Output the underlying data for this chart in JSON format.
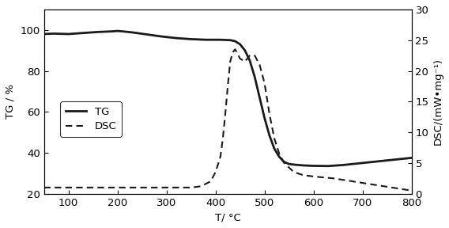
{
  "xlabel": "T/ °C",
  "ylabel_left": "TG / %",
  "ylabel_right": "DSC/(mW•mg⁻¹)",
  "xlim": [
    50,
    800
  ],
  "ylim_left": [
    20,
    110
  ],
  "ylim_right": [
    0,
    30
  ],
  "xticks": [
    100,
    200,
    300,
    400,
    500,
    600,
    700,
    800
  ],
  "yticks_left": [
    20,
    40,
    60,
    80,
    100
  ],
  "yticks_right": [
    0,
    5,
    10,
    15,
    20,
    25,
    30
  ],
  "tg_x": [
    50,
    70,
    100,
    130,
    160,
    190,
    200,
    210,
    230,
    260,
    290,
    320,
    350,
    380,
    410,
    430,
    440,
    450,
    460,
    470,
    480,
    490,
    500,
    510,
    520,
    530,
    540,
    550,
    560,
    570,
    580,
    600,
    630,
    660,
    700,
    740,
    800
  ],
  "tg_y": [
    98.0,
    98.2,
    98.0,
    98.5,
    99.0,
    99.3,
    99.5,
    99.3,
    98.8,
    97.8,
    96.8,
    96.0,
    95.5,
    95.2,
    95.2,
    95.0,
    94.5,
    93.0,
    90.0,
    85.0,
    77.0,
    67.0,
    57.0,
    48.5,
    42.0,
    38.0,
    35.5,
    34.5,
    34.2,
    34.0,
    33.8,
    33.6,
    33.5,
    34.0,
    35.0,
    36.0,
    37.5
  ],
  "dsc_x": [
    50,
    100,
    150,
    200,
    250,
    300,
    350,
    370,
    390,
    400,
    410,
    415,
    420,
    425,
    430,
    435,
    440,
    445,
    450,
    460,
    470,
    480,
    490,
    500,
    510,
    520,
    530,
    540,
    560,
    580,
    600,
    640,
    680,
    720,
    760,
    800
  ],
  "dsc_y": [
    1.0,
    1.0,
    1.0,
    1.0,
    1.0,
    1.0,
    1.0,
    1.2,
    2.0,
    3.5,
    6.0,
    9.0,
    13.0,
    17.5,
    21.5,
    23.0,
    23.5,
    22.8,
    22.0,
    21.5,
    22.5,
    22.5,
    21.0,
    18.0,
    13.0,
    9.0,
    6.5,
    5.0,
    3.5,
    3.0,
    2.8,
    2.5,
    2.0,
    1.5,
    1.0,
    0.5
  ],
  "line_color": "#1a1a1a",
  "bg_color": "#ffffff",
  "fontsize": 9.5,
  "tg_linewidth": 2.0,
  "dsc_linewidth": 1.5
}
